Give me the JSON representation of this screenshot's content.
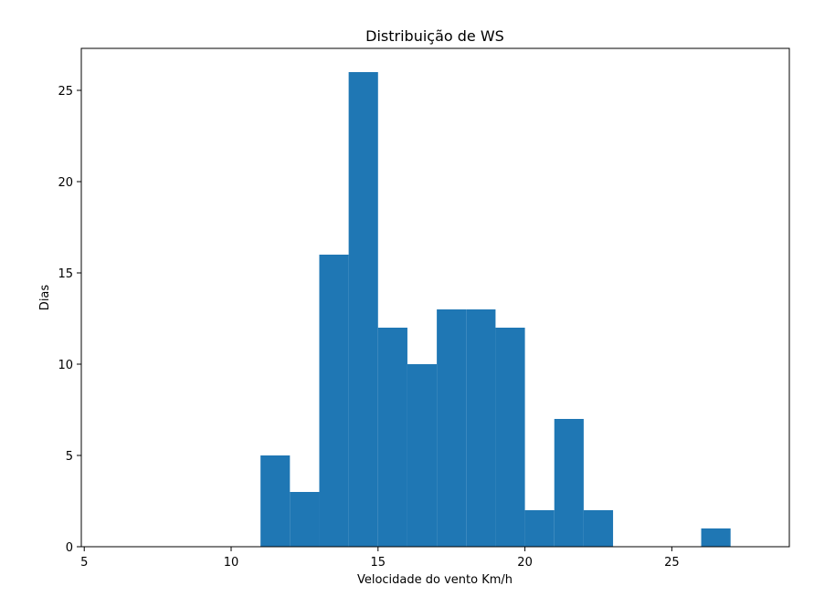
{
  "chart_data": {
    "type": "bar",
    "title": "Distribuição de WS",
    "xlabel": "Velocidade do vento Km/h",
    "ylabel": "Dias",
    "xlim": [
      4.9,
      29
    ],
    "ylim": [
      0,
      27.3
    ],
    "xticks": [
      5,
      10,
      15,
      20,
      25
    ],
    "yticks": [
      0,
      5,
      10,
      15,
      20,
      25
    ],
    "bar_color": "#1f77b4",
    "grid": false,
    "bins": [
      {
        "x0": 11,
        "x1": 12,
        "value": 5
      },
      {
        "x0": 12,
        "x1": 13,
        "value": 3
      },
      {
        "x0": 13,
        "x1": 14,
        "value": 16
      },
      {
        "x0": 14,
        "x1": 15,
        "value": 26
      },
      {
        "x0": 15,
        "x1": 16,
        "value": 12
      },
      {
        "x0": 16,
        "x1": 17,
        "value": 10
      },
      {
        "x0": 17,
        "x1": 18,
        "value": 13
      },
      {
        "x0": 18,
        "x1": 19,
        "value": 13
      },
      {
        "x0": 19,
        "x1": 20,
        "value": 12
      },
      {
        "x0": 20,
        "x1": 21,
        "value": 2
      },
      {
        "x0": 21,
        "x1": 22,
        "value": 7
      },
      {
        "x0": 22,
        "x1": 23,
        "value": 2
      },
      {
        "x0": 26,
        "x1": 27,
        "value": 1
      }
    ]
  }
}
